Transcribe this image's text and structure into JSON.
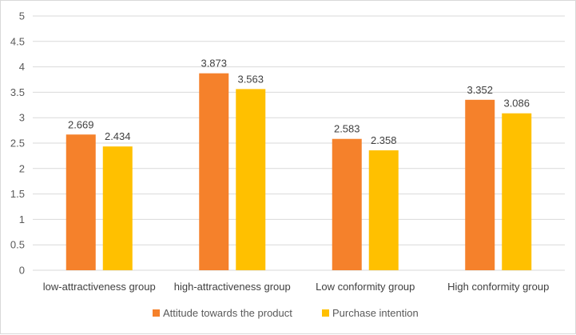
{
  "chart_data": {
    "type": "bar",
    "categories": [
      "low-attractiveness group",
      "high-attractiveness group",
      "Low conformity group",
      "High conformity group"
    ],
    "series": [
      {
        "name": "Attitude towards the product",
        "values": [
          2.669,
          3.873,
          2.583,
          3.352
        ],
        "labels": [
          "2.669",
          "3.873",
          "2.583",
          "3.352"
        ],
        "color": "#f5812b"
      },
      {
        "name": "Purchase intention",
        "values": [
          2.434,
          3.563,
          2.358,
          3.086
        ],
        "labels": [
          "2.434",
          "3.563",
          "2.358",
          "3.086"
        ],
        "color": "#ffc000"
      }
    ],
    "y_ticks": [
      "0",
      "0.5",
      "1",
      "1.5",
      "2",
      "2.5",
      "3",
      "3.5",
      "4",
      "4.5",
      "5"
    ],
    "ylim": [
      0,
      5
    ],
    "grid": true,
    "legend": "bottom",
    "title": "",
    "xlabel": "",
    "ylabel": ""
  }
}
